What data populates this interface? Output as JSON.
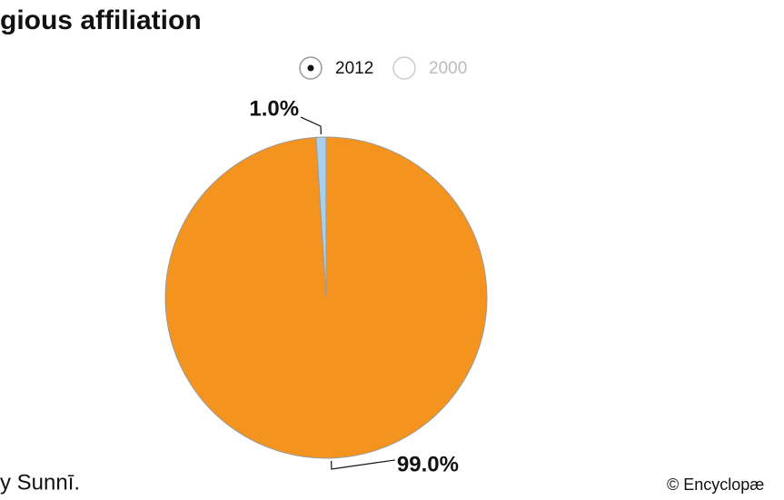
{
  "chart_data": {
    "type": "pie",
    "title": "gious affiliation",
    "options": [
      "2012",
      "2000"
    ],
    "selected": 0,
    "values": [
      99.0,
      1.0
    ],
    "value_labels": [
      "99.0%",
      "1.0%"
    ],
    "colors": [
      "#f4941f",
      "#a8d0ea"
    ],
    "note": "y Sunnī.",
    "credit": "© Encyclopæ"
  }
}
